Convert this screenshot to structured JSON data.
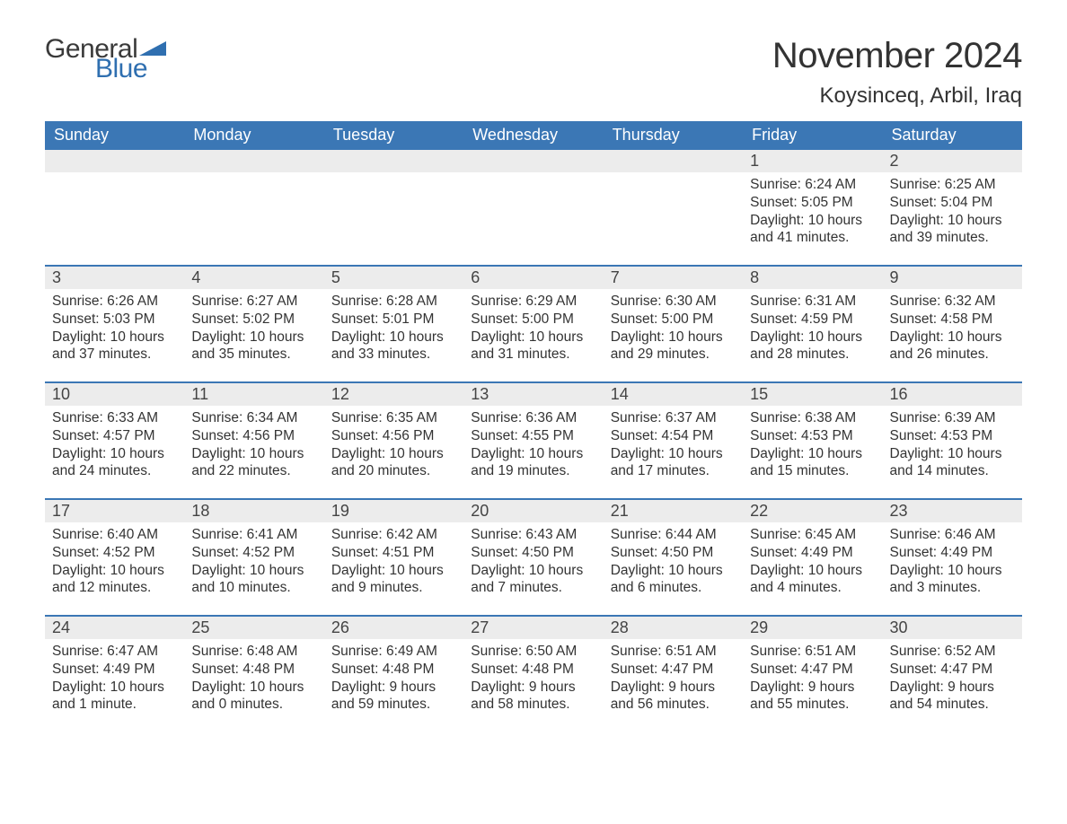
{
  "brand": {
    "word1": "General",
    "word2": "Blue",
    "text_color": "#3a3a3a",
    "accent_color": "#2f6fb0"
  },
  "title": "November 2024",
  "location": "Koysinceq, Arbil, Iraq",
  "calendar": {
    "type": "table",
    "header_bg": "#3b77b5",
    "header_fg": "#ffffff",
    "row_divider_color": "#3b77b5",
    "daynum_band_bg": "#ececec",
    "body_bg": "#ffffff",
    "text_color": "#333333",
    "font_size_header": 18,
    "font_size_daynum": 18,
    "font_size_body": 15.5,
    "day_names": [
      "Sunday",
      "Monday",
      "Tuesday",
      "Wednesday",
      "Thursday",
      "Friday",
      "Saturday"
    ],
    "weeks": [
      [
        null,
        null,
        null,
        null,
        null,
        {
          "n": "1",
          "sunrise": "Sunrise: 6:24 AM",
          "sunset": "Sunset: 5:05 PM",
          "daylight": "Daylight: 10 hours and 41 minutes."
        },
        {
          "n": "2",
          "sunrise": "Sunrise: 6:25 AM",
          "sunset": "Sunset: 5:04 PM",
          "daylight": "Daylight: 10 hours and 39 minutes."
        }
      ],
      [
        {
          "n": "3",
          "sunrise": "Sunrise: 6:26 AM",
          "sunset": "Sunset: 5:03 PM",
          "daylight": "Daylight: 10 hours and 37 minutes."
        },
        {
          "n": "4",
          "sunrise": "Sunrise: 6:27 AM",
          "sunset": "Sunset: 5:02 PM",
          "daylight": "Daylight: 10 hours and 35 minutes."
        },
        {
          "n": "5",
          "sunrise": "Sunrise: 6:28 AM",
          "sunset": "Sunset: 5:01 PM",
          "daylight": "Daylight: 10 hours and 33 minutes."
        },
        {
          "n": "6",
          "sunrise": "Sunrise: 6:29 AM",
          "sunset": "Sunset: 5:00 PM",
          "daylight": "Daylight: 10 hours and 31 minutes."
        },
        {
          "n": "7",
          "sunrise": "Sunrise: 6:30 AM",
          "sunset": "Sunset: 5:00 PM",
          "daylight": "Daylight: 10 hours and 29 minutes."
        },
        {
          "n": "8",
          "sunrise": "Sunrise: 6:31 AM",
          "sunset": "Sunset: 4:59 PM",
          "daylight": "Daylight: 10 hours and 28 minutes."
        },
        {
          "n": "9",
          "sunrise": "Sunrise: 6:32 AM",
          "sunset": "Sunset: 4:58 PM",
          "daylight": "Daylight: 10 hours and 26 minutes."
        }
      ],
      [
        {
          "n": "10",
          "sunrise": "Sunrise: 6:33 AM",
          "sunset": "Sunset: 4:57 PM",
          "daylight": "Daylight: 10 hours and 24 minutes."
        },
        {
          "n": "11",
          "sunrise": "Sunrise: 6:34 AM",
          "sunset": "Sunset: 4:56 PM",
          "daylight": "Daylight: 10 hours and 22 minutes."
        },
        {
          "n": "12",
          "sunrise": "Sunrise: 6:35 AM",
          "sunset": "Sunset: 4:56 PM",
          "daylight": "Daylight: 10 hours and 20 minutes."
        },
        {
          "n": "13",
          "sunrise": "Sunrise: 6:36 AM",
          "sunset": "Sunset: 4:55 PM",
          "daylight": "Daylight: 10 hours and 19 minutes."
        },
        {
          "n": "14",
          "sunrise": "Sunrise: 6:37 AM",
          "sunset": "Sunset: 4:54 PM",
          "daylight": "Daylight: 10 hours and 17 minutes."
        },
        {
          "n": "15",
          "sunrise": "Sunrise: 6:38 AM",
          "sunset": "Sunset: 4:53 PM",
          "daylight": "Daylight: 10 hours and 15 minutes."
        },
        {
          "n": "16",
          "sunrise": "Sunrise: 6:39 AM",
          "sunset": "Sunset: 4:53 PM",
          "daylight": "Daylight: 10 hours and 14 minutes."
        }
      ],
      [
        {
          "n": "17",
          "sunrise": "Sunrise: 6:40 AM",
          "sunset": "Sunset: 4:52 PM",
          "daylight": "Daylight: 10 hours and 12 minutes."
        },
        {
          "n": "18",
          "sunrise": "Sunrise: 6:41 AM",
          "sunset": "Sunset: 4:52 PM",
          "daylight": "Daylight: 10 hours and 10 minutes."
        },
        {
          "n": "19",
          "sunrise": "Sunrise: 6:42 AM",
          "sunset": "Sunset: 4:51 PM",
          "daylight": "Daylight: 10 hours and 9 minutes."
        },
        {
          "n": "20",
          "sunrise": "Sunrise: 6:43 AM",
          "sunset": "Sunset: 4:50 PM",
          "daylight": "Daylight: 10 hours and 7 minutes."
        },
        {
          "n": "21",
          "sunrise": "Sunrise: 6:44 AM",
          "sunset": "Sunset: 4:50 PM",
          "daylight": "Daylight: 10 hours and 6 minutes."
        },
        {
          "n": "22",
          "sunrise": "Sunrise: 6:45 AM",
          "sunset": "Sunset: 4:49 PM",
          "daylight": "Daylight: 10 hours and 4 minutes."
        },
        {
          "n": "23",
          "sunrise": "Sunrise: 6:46 AM",
          "sunset": "Sunset: 4:49 PM",
          "daylight": "Daylight: 10 hours and 3 minutes."
        }
      ],
      [
        {
          "n": "24",
          "sunrise": "Sunrise: 6:47 AM",
          "sunset": "Sunset: 4:49 PM",
          "daylight": "Daylight: 10 hours and 1 minute."
        },
        {
          "n": "25",
          "sunrise": "Sunrise: 6:48 AM",
          "sunset": "Sunset: 4:48 PM",
          "daylight": "Daylight: 10 hours and 0 minutes."
        },
        {
          "n": "26",
          "sunrise": "Sunrise: 6:49 AM",
          "sunset": "Sunset: 4:48 PM",
          "daylight": "Daylight: 9 hours and 59 minutes."
        },
        {
          "n": "27",
          "sunrise": "Sunrise: 6:50 AM",
          "sunset": "Sunset: 4:48 PM",
          "daylight": "Daylight: 9 hours and 58 minutes."
        },
        {
          "n": "28",
          "sunrise": "Sunrise: 6:51 AM",
          "sunset": "Sunset: 4:47 PM",
          "daylight": "Daylight: 9 hours and 56 minutes."
        },
        {
          "n": "29",
          "sunrise": "Sunrise: 6:51 AM",
          "sunset": "Sunset: 4:47 PM",
          "daylight": "Daylight: 9 hours and 55 minutes."
        },
        {
          "n": "30",
          "sunrise": "Sunrise: 6:52 AM",
          "sunset": "Sunset: 4:47 PM",
          "daylight": "Daylight: 9 hours and 54 minutes."
        }
      ]
    ]
  }
}
